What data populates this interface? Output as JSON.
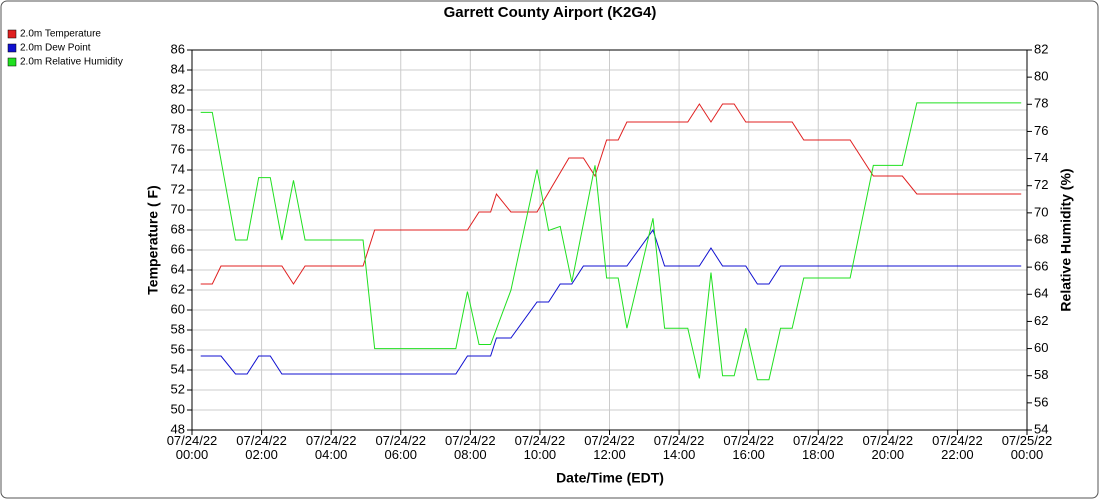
{
  "chart_data": {
    "type": "line",
    "title": "Garrett County Airport (K2G4)",
    "xlabel": "Date/Time (EDT)",
    "ylabel": "Temperature ( F)",
    "y2label": "Relative Humidity (%)",
    "xlim": [
      "07/24/22 00:00",
      "07/25/22 00:00"
    ],
    "xticks": [
      "07/24/22 00:00",
      "07/24/22 02:00",
      "07/24/22 04:00",
      "07/24/22 06:00",
      "07/24/22 08:00",
      "07/24/22 10:00",
      "07/24/22 12:00",
      "07/24/22 14:00",
      "07/24/22 16:00",
      "07/24/22 18:00",
      "07/24/22 20:00",
      "07/24/22 22:00",
      "07/25/22 00:00"
    ],
    "ylim": [
      48,
      86
    ],
    "yticks": [
      48,
      50,
      52,
      54,
      56,
      58,
      60,
      62,
      64,
      66,
      68,
      70,
      72,
      74,
      76,
      78,
      80,
      82,
      84,
      86
    ],
    "y2lim": [
      54,
      82
    ],
    "y2ticks": [
      54,
      56,
      58,
      60,
      62,
      64,
      66,
      68,
      70,
      72,
      74,
      76,
      78,
      80,
      82
    ],
    "grid": true,
    "legend": "top-left",
    "series": [
      {
        "name": "2.0m Temperature",
        "color": "#e02020",
        "x": [
          "07/24/22 00:15",
          "07/24/22 00:35",
          "07/24/22 00:50",
          "07/24/22 02:35",
          "07/24/22 02:55",
          "07/24/22 03:15",
          "07/24/22 04:55",
          "07/24/22 05:15",
          "07/24/22 07:55",
          "07/24/22 08:15",
          "07/24/22 08:35",
          "07/24/22 08:45",
          "07/24/22 09:10",
          "07/24/22 09:55",
          "07/24/22 10:50",
          "07/24/22 11:15",
          "07/24/22 11:35",
          "07/24/22 11:55",
          "07/24/22 12:15",
          "07/24/22 12:30",
          "07/24/22 14:15",
          "07/24/22 14:35",
          "07/24/22 14:55",
          "07/24/22 15:15",
          "07/24/22 15:35",
          "07/24/22 15:55",
          "07/24/22 17:15",
          "07/24/22 17:35",
          "07/24/22 18:55",
          "07/24/22 19:35",
          "07/24/22 20:25",
          "07/24/22 20:50",
          "07/24/22 23:50"
        ],
        "values": [
          62.6,
          62.6,
          64.4,
          64.4,
          62.6,
          64.4,
          64.4,
          68,
          68,
          69.8,
          69.8,
          71.6,
          69.8,
          69.8,
          75.2,
          75.2,
          73.4,
          77,
          77,
          78.8,
          78.8,
          80.6,
          78.8,
          80.6,
          80.6,
          78.8,
          78.8,
          77,
          77,
          73.4,
          73.4,
          71.6,
          71.6
        ]
      },
      {
        "name": "2.0m Dew Point",
        "color": "#1010d0",
        "x": [
          "07/24/22 00:15",
          "07/24/22 00:50",
          "07/24/22 01:15",
          "07/24/22 01:35",
          "07/24/22 01:55",
          "07/24/22 02:15",
          "07/24/22 02:35",
          "07/24/22 07:35",
          "07/24/22 07:55",
          "07/24/22 08:35",
          "07/24/22 08:45",
          "07/24/22 09:10",
          "07/24/22 09:55",
          "07/24/22 10:15",
          "07/24/22 10:35",
          "07/24/22 10:55",
          "07/24/22 11:15",
          "07/24/22 12:30",
          "07/24/22 13:15",
          "07/24/22 13:35",
          "07/24/22 14:35",
          "07/24/22 14:55",
          "07/24/22 15:15",
          "07/24/22 15:55",
          "07/24/22 16:15",
          "07/24/22 16:35",
          "07/24/22 16:55",
          "07/24/22 23:50"
        ],
        "values": [
          55.4,
          55.4,
          53.6,
          53.6,
          55.4,
          55.4,
          53.6,
          53.6,
          55.4,
          55.4,
          57.2,
          57.2,
          60.8,
          60.8,
          62.6,
          62.6,
          64.4,
          64.4,
          68,
          64.4,
          64.4,
          66.2,
          64.4,
          64.4,
          62.6,
          62.6,
          64.4,
          64.4
        ]
      },
      {
        "name": "2.0m Relative Humidity",
        "color": "#20e020",
        "axis": "y2",
        "x": [
          "07/24/22 00:15",
          "07/24/22 00:35",
          "07/24/22 01:15",
          "07/24/22 01:35",
          "07/24/22 01:55",
          "07/24/22 02:15",
          "07/24/22 02:35",
          "07/24/22 02:55",
          "07/24/22 03:15",
          "07/24/22 04:55",
          "07/24/22 05:15",
          "07/24/22 07:35",
          "07/24/22 07:55",
          "07/24/22 08:15",
          "07/24/22 08:35",
          "07/24/22 09:10",
          "07/24/22 09:55",
          "07/24/22 10:15",
          "07/24/22 10:35",
          "07/24/22 10:55",
          "07/24/22 11:35",
          "07/24/22 11:55",
          "07/24/22 12:15",
          "07/24/22 12:30",
          "07/24/22 13:15",
          "07/24/22 13:35",
          "07/24/22 14:15",
          "07/24/22 14:35",
          "07/24/22 14:55",
          "07/24/22 15:15",
          "07/24/22 15:35",
          "07/24/22 15:55",
          "07/24/22 16:15",
          "07/24/22 16:35",
          "07/24/22 16:55",
          "07/24/22 17:15",
          "07/24/22 17:35",
          "07/24/22 18:55",
          "07/24/22 19:35",
          "07/24/22 20:25",
          "07/24/22 20:50",
          "07/24/22 23:50"
        ],
        "values": [
          77.4,
          77.4,
          68,
          68,
          72.6,
          72.6,
          68,
          72.4,
          68,
          68,
          60,
          60,
          64.2,
          60.3,
          60.3,
          64.3,
          73.2,
          68.7,
          69,
          64.9,
          73.5,
          65.2,
          65.2,
          61.5,
          69.6,
          61.5,
          61.5,
          57.8,
          65.6,
          58,
          58,
          61.5,
          57.7,
          57.7,
          61.5,
          61.5,
          65.2,
          65.2,
          73.5,
          73.5,
          78.1,
          78.1
        ]
      }
    ]
  }
}
